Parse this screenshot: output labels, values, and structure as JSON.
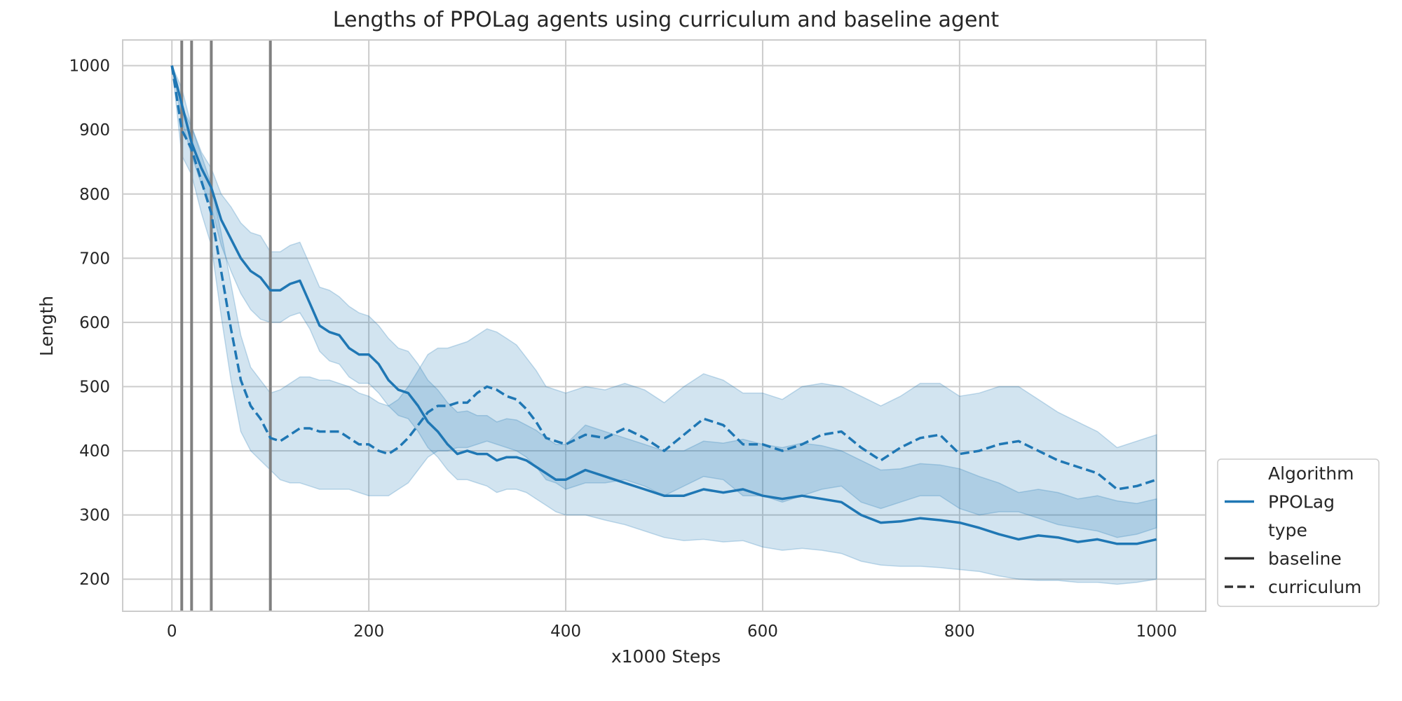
{
  "chart_data": {
    "type": "line",
    "title": "Lengths of PPOLag agents using curriculum and baseline agent",
    "xlabel": "x1000 Steps",
    "ylabel": "Length",
    "xlim": [
      -50,
      1050
    ],
    "ylim": [
      150,
      1040
    ],
    "xticks": [
      0,
      200,
      400,
      600,
      800,
      1000
    ],
    "yticks": [
      200,
      300,
      400,
      500,
      600,
      700,
      800,
      900,
      1000
    ],
    "grid": true,
    "vertical_markers": [
      10,
      20,
      40,
      100
    ],
    "legend": {
      "placement": "right-bottom outside",
      "entries": [
        {
          "text": "Algorithm",
          "kind": "header"
        },
        {
          "text": "PPOLag",
          "kind": "color"
        },
        {
          "text": "type",
          "kind": "header"
        },
        {
          "text": "baseline",
          "kind": "solid"
        },
        {
          "text": "curriculum",
          "kind": "dashed"
        }
      ]
    },
    "colors": {
      "line": "#1f77b4",
      "band": "#1f77b4",
      "marker": "#808080",
      "grid": "#cccccc"
    },
    "series": [
      {
        "name": "baseline",
        "style": "solid",
        "x": [
          0,
          10,
          20,
          30,
          40,
          50,
          60,
          70,
          80,
          90,
          100,
          110,
          120,
          130,
          140,
          150,
          160,
          170,
          180,
          190,
          200,
          210,
          220,
          230,
          240,
          250,
          260,
          270,
          280,
          290,
          300,
          310,
          320,
          330,
          340,
          350,
          360,
          370,
          380,
          390,
          400,
          420,
          440,
          460,
          480,
          500,
          520,
          540,
          560,
          580,
          600,
          620,
          640,
          660,
          680,
          700,
          720,
          740,
          760,
          780,
          800,
          820,
          840,
          860,
          880,
          900,
          920,
          940,
          960,
          980,
          1000
        ],
        "y": [
          1000,
          940,
          880,
          840,
          810,
          760,
          730,
          700,
          680,
          670,
          650,
          650,
          660,
          665,
          630,
          595,
          585,
          580,
          560,
          550,
          550,
          535,
          510,
          495,
          490,
          470,
          445,
          430,
          410,
          395,
          400,
          395,
          395,
          385,
          390,
          390,
          385,
          375,
          365,
          355,
          355,
          370,
          360,
          350,
          340,
          330,
          330,
          340,
          335,
          340,
          330,
          325,
          330,
          325,
          320,
          300,
          288,
          290,
          295,
          292,
          288,
          280,
          270,
          262,
          268,
          265,
          258,
          262,
          255,
          255,
          262
        ],
        "lower": [
          1000,
          915,
          860,
          815,
          780,
          720,
          680,
          645,
          620,
          605,
          600,
          600,
          610,
          615,
          590,
          555,
          540,
          535,
          515,
          505,
          505,
          490,
          470,
          455,
          450,
          430,
          405,
          390,
          370,
          355,
          355,
          350,
          345,
          335,
          340,
          340,
          335,
          325,
          315,
          305,
          300,
          300,
          292,
          285,
          275,
          265,
          260,
          262,
          258,
          260,
          250,
          245,
          248,
          245,
          240,
          228,
          222,
          220,
          220,
          218,
          215,
          212,
          205,
          200,
          198,
          198,
          195,
          195,
          192,
          195,
          200
        ],
        "upper": [
          1000,
          965,
          905,
          865,
          840,
          800,
          780,
          755,
          740,
          735,
          710,
          710,
          720,
          725,
          690,
          655,
          650,
          640,
          625,
          615,
          610,
          595,
          575,
          560,
          555,
          535,
          510,
          495,
          475,
          460,
          462,
          455,
          455,
          445,
          450,
          448,
          440,
          432,
          420,
          410,
          410,
          440,
          430,
          420,
          410,
          400,
          400,
          415,
          412,
          418,
          410,
          405,
          412,
          408,
          400,
          385,
          370,
          372,
          380,
          378,
          372,
          360,
          350,
          335,
          340,
          335,
          325,
          330,
          322,
          318,
          325
        ]
      },
      {
        "name": "curriculum",
        "style": "dashed",
        "x": [
          0,
          10,
          20,
          30,
          40,
          50,
          60,
          70,
          80,
          90,
          100,
          110,
          120,
          130,
          140,
          150,
          160,
          170,
          180,
          190,
          200,
          210,
          220,
          230,
          240,
          250,
          260,
          270,
          280,
          290,
          300,
          310,
          320,
          330,
          340,
          350,
          360,
          370,
          380,
          390,
          400,
          420,
          440,
          460,
          480,
          500,
          520,
          540,
          560,
          580,
          600,
          620,
          640,
          660,
          680,
          700,
          720,
          740,
          760,
          780,
          800,
          820,
          840,
          860,
          880,
          900,
          920,
          940,
          960,
          980,
          1000
        ],
        "y": [
          1000,
          900,
          870,
          820,
          770,
          680,
          590,
          510,
          470,
          450,
          420,
          415,
          425,
          435,
          435,
          430,
          430,
          430,
          420,
          410,
          410,
          400,
          395,
          405,
          420,
          440,
          460,
          470,
          470,
          475,
          475,
          490,
          500,
          495,
          485,
          480,
          465,
          445,
          420,
          415,
          410,
          425,
          420,
          435,
          420,
          400,
          425,
          450,
          440,
          410,
          410,
          400,
          410,
          425,
          430,
          405,
          385,
          405,
          420,
          425,
          395,
          400,
          410,
          415,
          400,
          385,
          375,
          365,
          340,
          345,
          355
        ],
        "lower": [
          1000,
          860,
          830,
          770,
          720,
          610,
          510,
          430,
          400,
          385,
          370,
          355,
          350,
          350,
          345,
          340,
          340,
          340,
          340,
          335,
          330,
          330,
          330,
          340,
          350,
          370,
          390,
          400,
          400,
          405,
          405,
          410,
          415,
          410,
          405,
          400,
          390,
          375,
          355,
          350,
          340,
          350,
          350,
          355,
          345,
          330,
          345,
          360,
          355,
          330,
          330,
          320,
          330,
          340,
          345,
          320,
          310,
          320,
          330,
          330,
          310,
          300,
          305,
          305,
          295,
          285,
          280,
          275,
          265,
          270,
          280
        ],
        "upper": [
          1000,
          935,
          905,
          860,
          815,
          740,
          660,
          580,
          530,
          510,
          490,
          495,
          505,
          515,
          515,
          510,
          510,
          505,
          500,
          490,
          485,
          475,
          470,
          480,
          500,
          525,
          550,
          560,
          560,
          565,
          570,
          580,
          590,
          585,
          575,
          565,
          545,
          525,
          500,
          495,
          490,
          500,
          495,
          505,
          495,
          475,
          500,
          520,
          510,
          490,
          490,
          480,
          500,
          505,
          500,
          485,
          470,
          485,
          505,
          505,
          485,
          490,
          500,
          500,
          480,
          460,
          445,
          430,
          405,
          415,
          425
        ]
      }
    ]
  }
}
